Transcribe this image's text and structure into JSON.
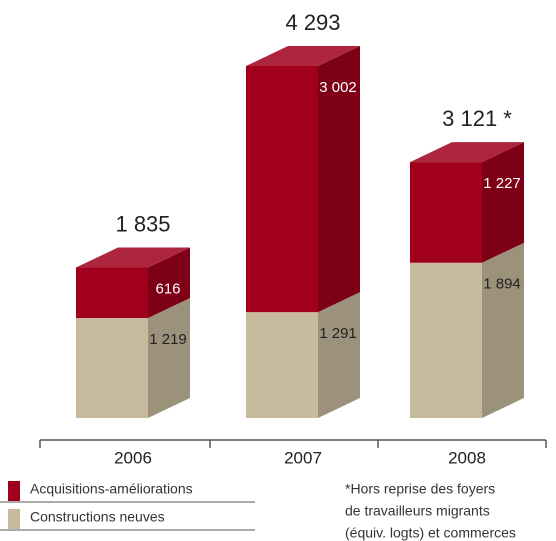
{
  "chart_data": {
    "type": "bar3d-stacked",
    "categories": [
      "2006",
      "2007",
      "2008"
    ],
    "series": [
      {
        "name": "Constructions neuves",
        "color": "#c8ba9c",
        "values": [
          1219,
          1291,
          1894
        ],
        "value_labels": [
          "1 219",
          "1 291",
          "1 894"
        ]
      },
      {
        "name": "Acquisitions-améliorations",
        "color": "#a0001c",
        "values": [
          616,
          3002,
          1227
        ],
        "value_labels": [
          "616",
          "3 002",
          "1 227"
        ]
      }
    ],
    "totals": {
      "values": [
        1835,
        4293,
        3121
      ],
      "value_labels": [
        "1 835",
        "4 293",
        "3 121 *"
      ]
    },
    "footnote": [
      "*Hors reprise des foyers",
      "de travailleurs migrants",
      "(équiv. logts) et commerces"
    ]
  }
}
